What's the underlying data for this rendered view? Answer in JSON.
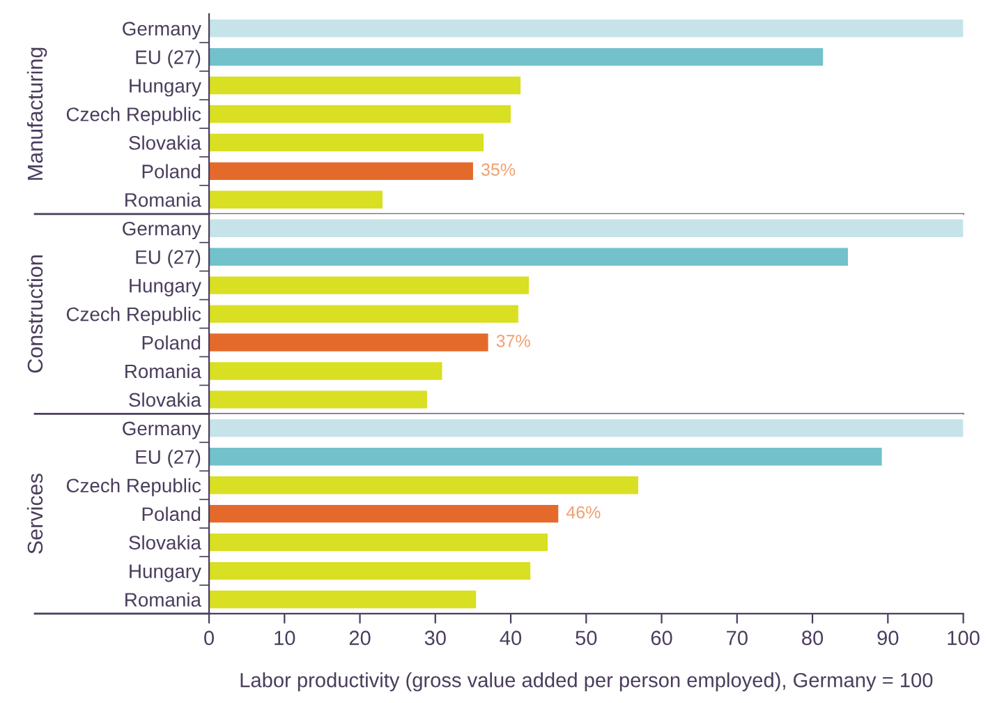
{
  "chart_data": [
    {
      "type": "bar",
      "orientation": "horizontal",
      "ylabel": "Manufacturing",
      "categories": [
        "Germany",
        "EU (27)",
        "Hungary",
        "Czech Republic",
        "Slovakia",
        "Poland",
        "Romania"
      ],
      "values": [
        100,
        81.4,
        41.3,
        40,
        36.4,
        35,
        23
      ],
      "colors": [
        "#c5e3e8",
        "#72c1cb",
        "#d9df22",
        "#d9df22",
        "#d9df22",
        "#e46a2b",
        "#d9df22"
      ],
      "value_labels": [
        null,
        null,
        null,
        null,
        null,
        "35%",
        null
      ],
      "xlim": [
        0,
        100
      ],
      "xticks": [
        0,
        10,
        20,
        30,
        40,
        50,
        60,
        70,
        80,
        90,
        100
      ],
      "tick_labels": "y",
      "grid": false,
      "legend": false
    },
    {
      "type": "bar",
      "orientation": "horizontal",
      "ylabel": "Construction",
      "categories": [
        "Germany",
        "EU (27)",
        "Hungary",
        "Czech Republic",
        "Poland",
        "Romania",
        "Slovakia"
      ],
      "values": [
        100,
        84.7,
        42.4,
        41,
        37,
        30.9,
        28.9
      ],
      "colors": [
        "#c5e3e8",
        "#72c1cb",
        "#d9df22",
        "#d9df22",
        "#e46a2b",
        "#d9df22",
        "#d9df22"
      ],
      "value_labels": [
        null,
        null,
        null,
        null,
        "37%",
        null,
        null
      ],
      "xlim": [
        0,
        100
      ],
      "xticks": [
        0,
        10,
        20,
        30,
        40,
        50,
        60,
        70,
        80,
        90,
        100
      ],
      "tick_labels": "y",
      "grid": false,
      "legend": false
    },
    {
      "type": "bar",
      "orientation": "horizontal",
      "ylabel": "Services",
      "xlabel": "Labor productivity (gross value added per person employed), Germany = 100",
      "categories": [
        "Germany",
        "EU (27)",
        "Czech Republic",
        "Poland",
        "Slovakia",
        "Hungary",
        "Romania"
      ],
      "values": [
        100,
        89.2,
        56.9,
        46.3,
        44.9,
        42.6,
        35.4
      ],
      "colors": [
        "#c5e3e8",
        "#72c1cb",
        "#d9df22",
        "#e46a2b",
        "#d9df22",
        "#d9df22",
        "#d9df22"
      ],
      "value_labels": [
        null,
        null,
        null,
        "46%",
        null,
        null,
        null
      ],
      "xlim": [
        0,
        100
      ],
      "xticks": [
        0,
        10,
        20,
        30,
        40,
        50,
        60,
        70,
        80,
        90,
        100
      ],
      "grid": false,
      "legend": false
    }
  ]
}
